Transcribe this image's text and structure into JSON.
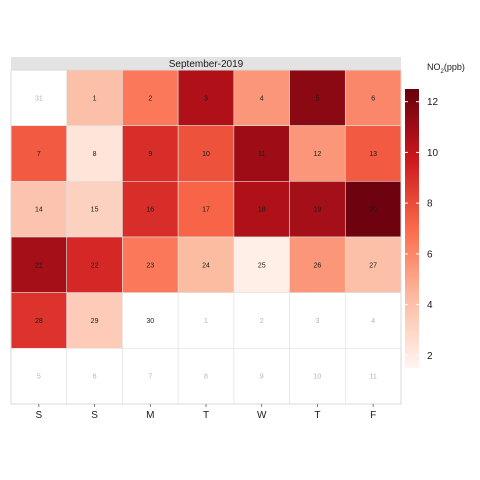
{
  "chart_data": {
    "type": "heatmap",
    "title": "September-2019",
    "weekday_labels": [
      "S",
      "S",
      "M",
      "T",
      "W",
      "T",
      "F"
    ],
    "legend": {
      "title_main": "NO",
      "title_sub": "2",
      "title_unit": "(ppb)",
      "ticks": [
        2,
        4,
        6,
        8,
        10,
        12
      ],
      "range": [
        1.5,
        12.5
      ],
      "colors": [
        "#fff5f0",
        "#fcbba1",
        "#fb6a4a",
        "#cb181d",
        "#67000d"
      ]
    },
    "weeks": [
      [
        {
          "day": 31,
          "value": null,
          "in_month": false
        },
        {
          "day": 1,
          "value": 4.0,
          "in_month": true
        },
        {
          "day": 2,
          "value": 6.5,
          "in_month": true
        },
        {
          "day": 3,
          "value": 10.5,
          "in_month": true
        },
        {
          "day": 4,
          "value": 5.5,
          "in_month": true
        },
        {
          "day": 5,
          "value": 11.5,
          "in_month": true
        },
        {
          "day": 6,
          "value": 6.0,
          "in_month": true
        }
      ],
      [
        {
          "day": 7,
          "value": 7.5,
          "in_month": true
        },
        {
          "day": 8,
          "value": 2.3,
          "in_month": true
        },
        {
          "day": 9,
          "value": 9.0,
          "in_month": true
        },
        {
          "day": 10,
          "value": 7.8,
          "in_month": true
        },
        {
          "day": 11,
          "value": 11.0,
          "in_month": true
        },
        {
          "day": 12,
          "value": 5.5,
          "in_month": true
        },
        {
          "day": 13,
          "value": 7.5,
          "in_month": true
        }
      ],
      [
        {
          "day": 14,
          "value": 3.8,
          "in_month": true
        },
        {
          "day": 15,
          "value": 3.2,
          "in_month": true
        },
        {
          "day": 16,
          "value": 9.0,
          "in_month": true
        },
        {
          "day": 17,
          "value": 7.2,
          "in_month": true
        },
        {
          "day": 18,
          "value": 10.5,
          "in_month": true
        },
        {
          "day": 19,
          "value": 10.8,
          "in_month": true
        },
        {
          "day": 20,
          "value": 12.3,
          "in_month": true
        }
      ],
      [
        {
          "day": 21,
          "value": 10.8,
          "in_month": true
        },
        {
          "day": 22,
          "value": 9.2,
          "in_month": true
        },
        {
          "day": 23,
          "value": 6.5,
          "in_month": true
        },
        {
          "day": 24,
          "value": 4.2,
          "in_month": true
        },
        {
          "day": 25,
          "value": 1.8,
          "in_month": true
        },
        {
          "day": 26,
          "value": 5.5,
          "in_month": true
        },
        {
          "day": 27,
          "value": 4.0,
          "in_month": true
        }
      ],
      [
        {
          "day": 28,
          "value": 8.8,
          "in_month": true
        },
        {
          "day": 29,
          "value": 3.5,
          "in_month": true
        },
        {
          "day": 30,
          "value": null,
          "in_month": true
        },
        {
          "day": 1,
          "value": null,
          "in_month": false
        },
        {
          "day": 2,
          "value": null,
          "in_month": false
        },
        {
          "day": 3,
          "value": null,
          "in_month": false
        },
        {
          "day": 4,
          "value": null,
          "in_month": false
        }
      ],
      [
        {
          "day": 5,
          "value": null,
          "in_month": false
        },
        {
          "day": 6,
          "value": null,
          "in_month": false
        },
        {
          "day": 7,
          "value": null,
          "in_month": false
        },
        {
          "day": 8,
          "value": null,
          "in_month": false
        },
        {
          "day": 9,
          "value": null,
          "in_month": false
        },
        {
          "day": 10,
          "value": null,
          "in_month": false
        },
        {
          "day": 11,
          "value": null,
          "in_month": false
        }
      ]
    ],
    "grid": true,
    "legend_placement": "right"
  }
}
